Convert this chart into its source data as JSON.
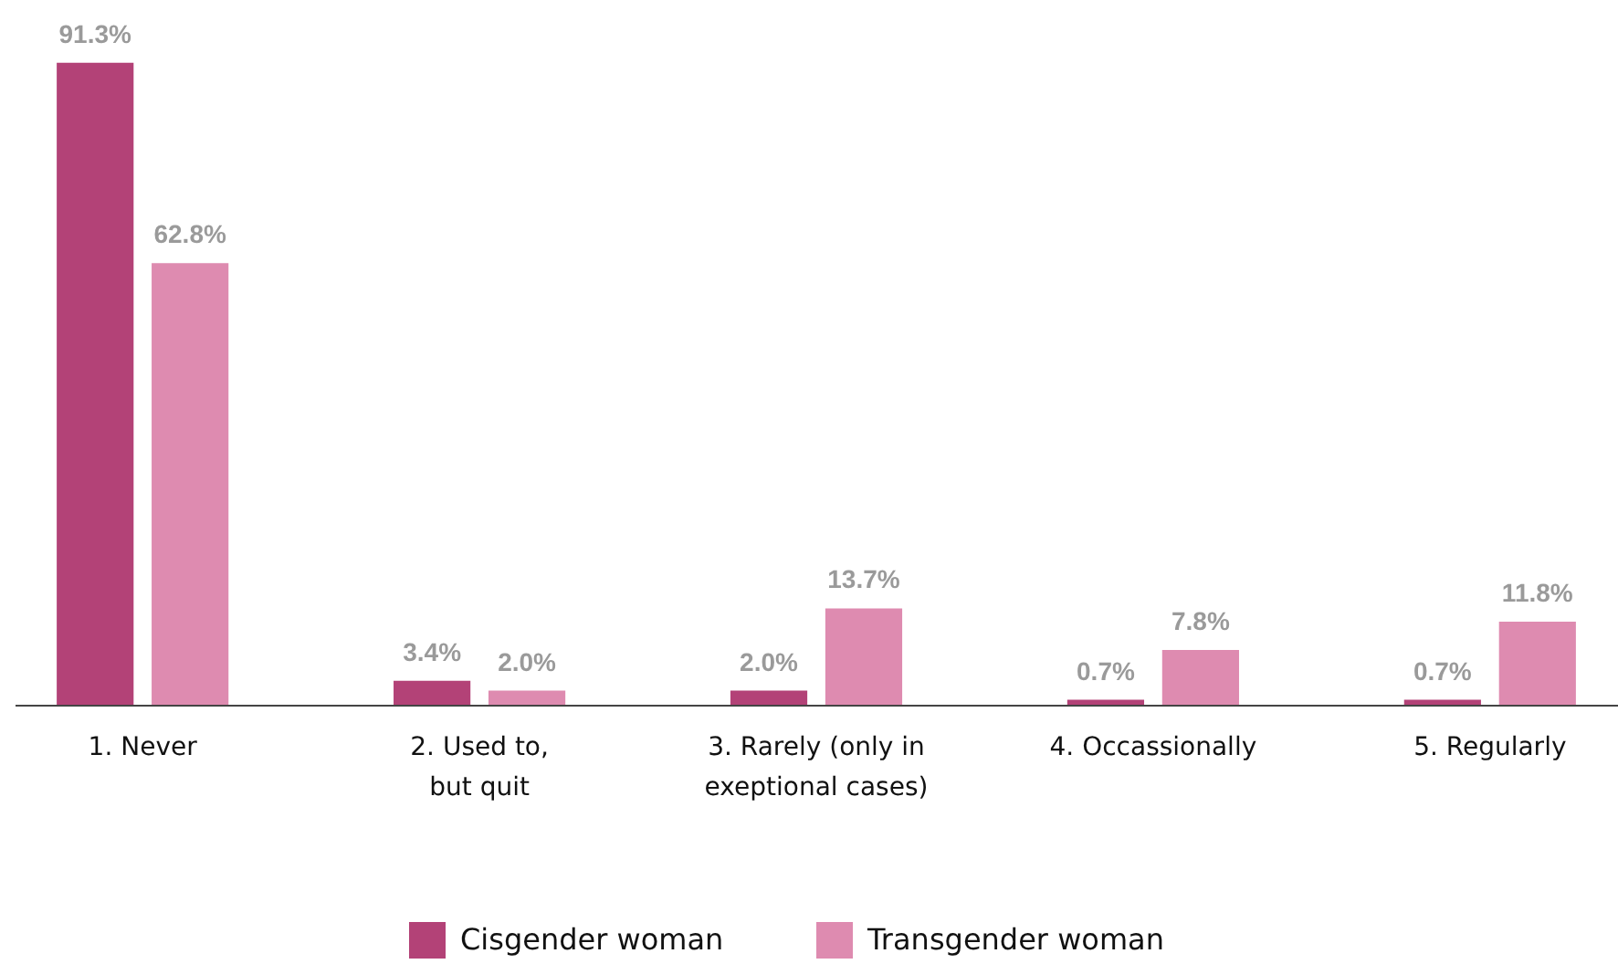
{
  "chart_data": {
    "type": "bar",
    "categories": [
      "1. Never",
      "2. Used to,\nbut quit",
      "3. Rarely (only in\nexeptional cases)",
      "4. Occassionally",
      "5. Regularly"
    ],
    "series": [
      {
        "name": "Cisgender woman",
        "color": "#b34277",
        "values": [
          91.3,
          3.4,
          2.0,
          0.7,
          0.7
        ],
        "value_labels": [
          "91.3%",
          "3.4%",
          "2.0%",
          "0.7%",
          "0.7%"
        ]
      },
      {
        "name": "Transgender woman",
        "color": "#de8bb0",
        "values": [
          62.8,
          2.0,
          13.7,
          7.8,
          11.8
        ],
        "value_labels": [
          "62.8%",
          "2.0%",
          "13.7%",
          "7.8%",
          "11.8%"
        ]
      }
    ],
    "legend": "bottom",
    "grid": false
  }
}
